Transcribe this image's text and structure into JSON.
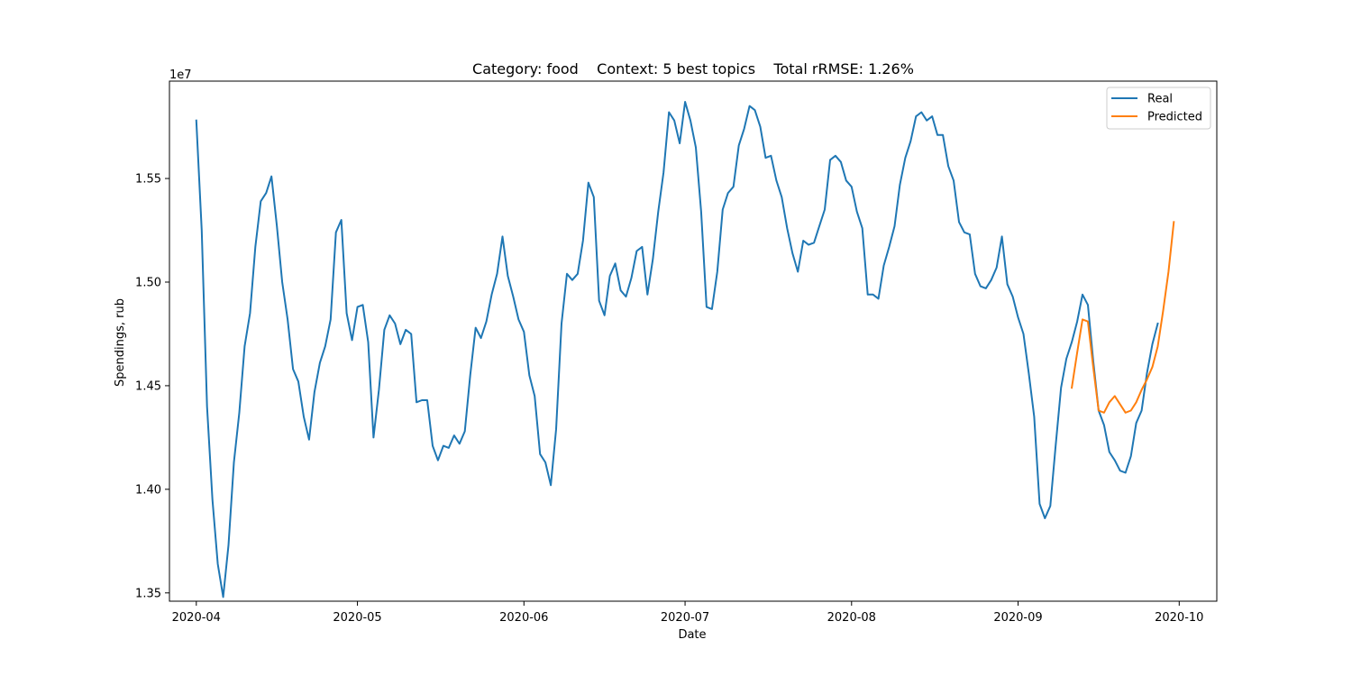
{
  "chart_data": {
    "type": "line",
    "title": "Category: food    Context: 5 best topics    Total rRMSE: 1.26%",
    "xlabel": "Date",
    "ylabel": "Spendings, rub",
    "y_scale_label": "1e7",
    "xlim": [
      "2020-03-27",
      "2020-10-08"
    ],
    "ylim": [
      13.46,
      15.97
    ],
    "x_ticks": [
      "2020-04-01",
      "2020-05-01",
      "2020-06-01",
      "2020-07-01",
      "2020-08-01",
      "2020-09-01",
      "2020-10-01"
    ],
    "x_tick_labels": [
      "2020-04",
      "2020-05",
      "2020-06",
      "2020-07",
      "2020-08",
      "2020-09",
      "2020-10"
    ],
    "y_ticks": [
      13.5,
      14.0,
      14.5,
      15.0,
      15.5
    ],
    "y_tick_labels": [
      "1.35",
      "1.40",
      "1.45",
      "1.50",
      "1.55"
    ],
    "legend_position": "top-right",
    "grid": false,
    "series": [
      {
        "name": "Real",
        "color": "#1f77b4",
        "x": [
          "2020-04-01",
          "2020-04-02",
          "2020-04-03",
          "2020-04-04",
          "2020-04-05",
          "2020-04-06",
          "2020-04-07",
          "2020-04-08",
          "2020-04-09",
          "2020-04-10",
          "2020-04-11",
          "2020-04-12",
          "2020-04-13",
          "2020-04-14",
          "2020-04-15",
          "2020-04-16",
          "2020-04-17",
          "2020-04-18",
          "2020-04-19",
          "2020-04-20",
          "2020-04-21",
          "2020-04-22",
          "2020-04-23",
          "2020-04-24",
          "2020-04-25",
          "2020-04-26",
          "2020-04-27",
          "2020-04-28",
          "2020-04-29",
          "2020-04-30",
          "2020-05-01",
          "2020-05-02",
          "2020-05-03",
          "2020-05-04",
          "2020-05-05",
          "2020-05-06",
          "2020-05-07",
          "2020-05-08",
          "2020-05-09",
          "2020-05-10",
          "2020-05-11",
          "2020-05-12",
          "2020-05-13",
          "2020-05-14",
          "2020-05-15",
          "2020-05-16",
          "2020-05-17",
          "2020-05-18",
          "2020-05-19",
          "2020-05-20",
          "2020-05-21",
          "2020-05-22",
          "2020-05-23",
          "2020-05-24",
          "2020-05-25",
          "2020-05-26",
          "2020-05-27",
          "2020-05-28",
          "2020-05-29",
          "2020-05-30",
          "2020-05-31",
          "2020-06-01",
          "2020-06-02",
          "2020-06-03",
          "2020-06-04",
          "2020-06-05",
          "2020-06-06",
          "2020-06-07",
          "2020-06-08",
          "2020-06-09",
          "2020-06-10",
          "2020-06-11",
          "2020-06-12",
          "2020-06-13",
          "2020-06-14",
          "2020-06-15",
          "2020-06-16",
          "2020-06-17",
          "2020-06-18",
          "2020-06-19",
          "2020-06-20",
          "2020-06-21",
          "2020-06-22",
          "2020-06-23",
          "2020-06-24",
          "2020-06-25",
          "2020-06-26",
          "2020-06-27",
          "2020-06-28",
          "2020-06-29",
          "2020-06-30",
          "2020-07-01",
          "2020-07-02",
          "2020-07-03",
          "2020-07-04",
          "2020-07-05",
          "2020-07-06",
          "2020-07-07",
          "2020-07-08",
          "2020-07-09",
          "2020-07-10",
          "2020-07-11",
          "2020-07-12",
          "2020-07-13",
          "2020-07-14",
          "2020-07-15",
          "2020-07-16",
          "2020-07-17",
          "2020-07-18",
          "2020-07-19",
          "2020-07-20",
          "2020-07-21",
          "2020-07-22",
          "2020-07-23",
          "2020-07-24",
          "2020-07-25",
          "2020-07-26",
          "2020-07-27",
          "2020-07-28",
          "2020-07-29",
          "2020-07-30",
          "2020-07-31",
          "2020-08-01",
          "2020-08-02",
          "2020-08-03",
          "2020-08-04",
          "2020-08-05",
          "2020-08-06",
          "2020-08-07",
          "2020-08-08",
          "2020-08-09",
          "2020-08-10",
          "2020-08-11",
          "2020-08-12",
          "2020-08-13",
          "2020-08-14",
          "2020-08-15",
          "2020-08-16",
          "2020-08-17",
          "2020-08-18",
          "2020-08-19",
          "2020-08-20",
          "2020-08-21",
          "2020-08-22",
          "2020-08-23",
          "2020-08-24",
          "2020-08-25",
          "2020-08-26",
          "2020-08-27",
          "2020-08-28",
          "2020-08-29",
          "2020-08-30",
          "2020-08-31",
          "2020-09-01",
          "2020-09-02",
          "2020-09-03",
          "2020-09-04",
          "2020-09-05",
          "2020-09-06",
          "2020-09-07",
          "2020-09-08",
          "2020-09-09",
          "2020-09-10",
          "2020-09-11",
          "2020-09-12",
          "2020-09-13",
          "2020-09-14",
          "2020-09-15",
          "2020-09-16",
          "2020-09-17",
          "2020-09-18",
          "2020-09-19",
          "2020-09-20",
          "2020-09-21",
          "2020-09-22",
          "2020-09-23",
          "2020-09-24",
          "2020-09-25",
          "2020-09-26",
          "2020-09-27"
        ],
        "values": [
          15.78,
          15.25,
          14.4,
          13.95,
          13.64,
          13.48,
          13.73,
          14.13,
          14.37,
          14.69,
          14.85,
          15.17,
          15.39,
          15.43,
          15.51,
          15.27,
          15.0,
          14.82,
          14.58,
          14.52,
          14.35,
          14.24,
          14.47,
          14.61,
          14.69,
          14.82,
          15.24,
          15.3,
          14.85,
          14.72,
          14.88,
          14.89,
          14.71,
          14.25,
          14.48,
          14.77,
          14.84,
          14.8,
          14.7,
          14.77,
          14.75,
          14.42,
          14.43,
          14.43,
          14.21,
          14.14,
          14.21,
          14.2,
          14.26,
          14.22,
          14.28,
          14.55,
          14.78,
          14.73,
          14.81,
          14.94,
          15.04,
          15.22,
          15.03,
          14.93,
          14.82,
          14.76,
          14.55,
          14.45,
          14.17,
          14.13,
          14.02,
          14.29,
          14.8,
          15.04,
          15.01,
          15.04,
          15.2,
          15.48,
          15.41,
          14.91,
          14.84,
          15.03,
          15.09,
          14.96,
          14.93,
          15.02,
          15.15,
          15.17,
          14.94,
          15.11,
          15.34,
          15.53,
          15.82,
          15.78,
          15.67,
          15.87,
          15.78,
          15.65,
          15.34,
          14.88,
          14.87,
          15.05,
          15.35,
          15.43,
          15.46,
          15.66,
          15.74,
          15.85,
          15.83,
          15.75,
          15.6,
          15.61,
          15.49,
          15.41,
          15.26,
          15.14,
          15.05,
          15.2,
          15.18,
          15.19,
          15.27,
          15.35,
          15.59,
          15.61,
          15.58,
          15.49,
          15.46,
          15.34,
          15.26,
          14.94,
          14.94,
          14.92,
          15.08,
          15.17,
          15.27,
          15.47,
          15.6,
          15.68,
          15.8,
          15.82,
          15.78,
          15.8,
          15.71,
          15.71,
          15.56,
          15.49,
          15.29,
          15.24,
          15.23,
          15.04,
          14.98,
          14.97,
          15.01,
          15.07,
          15.22,
          14.99,
          14.93,
          14.83,
          14.75,
          14.56,
          14.35,
          13.93,
          13.86,
          13.92,
          14.21,
          14.49,
          14.63,
          14.71,
          14.81,
          14.94,
          14.89,
          14.62,
          14.38,
          14.31,
          14.18,
          14.14,
          14.09,
          14.08,
          14.16,
          14.32,
          14.38,
          14.56,
          14.7,
          14.8
        ]
      },
      {
        "name": "Predicted",
        "color": "#ff7f0e",
        "x": [
          "2020-09-11",
          "2020-09-12",
          "2020-09-13",
          "2020-09-14",
          "2020-09-15",
          "2020-09-16",
          "2020-09-17",
          "2020-09-18",
          "2020-09-19",
          "2020-09-20",
          "2020-09-21",
          "2020-09-22",
          "2020-09-23",
          "2020-09-24",
          "2020-09-25",
          "2020-09-26",
          "2020-09-27",
          "2020-09-28",
          "2020-09-29",
          "2020-09-30"
        ],
        "values": [
          14.49,
          14.66,
          14.82,
          14.81,
          14.59,
          14.38,
          14.37,
          14.42,
          14.45,
          14.41,
          14.37,
          14.38,
          14.42,
          14.48,
          14.53,
          14.59,
          14.69,
          14.86,
          15.05,
          15.29
        ]
      }
    ]
  }
}
